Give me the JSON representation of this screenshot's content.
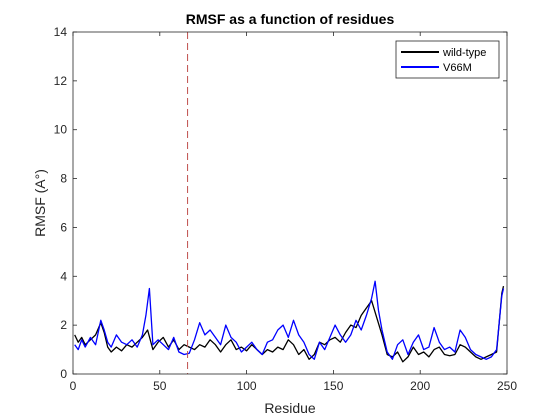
{
  "chart_data": {
    "type": "line",
    "title": "RMSF as a function of residues",
    "xlabel": "Residue",
    "ylabel": "RMSF (A°)",
    "xlim": [
      0,
      250
    ],
    "ylim": [
      0,
      14
    ],
    "xticks": [
      0,
      50,
      100,
      150,
      200,
      250
    ],
    "yticks": [
      0,
      2,
      4,
      6,
      8,
      10,
      12,
      14
    ],
    "grid": false,
    "legend_position": "top-right",
    "reference_line": {
      "x": 66,
      "style": "dashed",
      "color": "#c0504d"
    },
    "series": [
      {
        "name": "wild-type",
        "color": "#000000",
        "x": [
          1,
          3,
          5,
          7,
          10,
          13,
          16,
          18,
          20,
          22,
          25,
          28,
          31,
          34,
          37,
          40,
          43,
          46,
          49,
          52,
          55,
          58,
          61,
          64,
          67,
          70,
          73,
          76,
          79,
          82,
          85,
          88,
          91,
          94,
          97,
          100,
          103,
          106,
          109,
          112,
          115,
          118,
          121,
          124,
          127,
          130,
          133,
          136,
          139,
          142,
          145,
          148,
          151,
          154,
          157,
          160,
          163,
          166,
          169,
          172,
          175,
          178,
          181,
          184,
          187,
          190,
          193,
          196,
          199,
          202,
          205,
          208,
          211,
          214,
          217,
          220,
          223,
          226,
          229,
          232,
          235,
          238,
          241,
          244,
          247,
          248
        ],
        "y": [
          1.6,
          1.3,
          1.5,
          1.2,
          1.4,
          1.6,
          2.1,
          1.7,
          1.1,
          0.9,
          1.1,
          0.95,
          1.2,
          1.1,
          1.3,
          1.5,
          1.8,
          1.0,
          1.3,
          1.5,
          1.1,
          1.4,
          1.0,
          1.2,
          1.1,
          1.0,
          1.2,
          1.1,
          1.4,
          1.2,
          0.9,
          1.2,
          1.4,
          1.0,
          1.1,
          0.95,
          1.2,
          1.0,
          0.8,
          1.0,
          0.9,
          1.1,
          1.0,
          1.4,
          1.2,
          0.8,
          1.0,
          0.6,
          0.8,
          1.3,
          1.2,
          1.4,
          1.5,
          1.3,
          1.7,
          2.0,
          1.9,
          2.4,
          2.7,
          3.0,
          2.3,
          1.6,
          0.8,
          0.7,
          0.9,
          0.5,
          0.7,
          1.1,
          0.8,
          0.9,
          0.7,
          1.0,
          1.1,
          0.8,
          0.75,
          0.8,
          1.2,
          1.1,
          0.9,
          0.7,
          0.6,
          0.7,
          0.8,
          0.9,
          3.3,
          3.6
        ]
      },
      {
        "name": "V66M",
        "color": "#0000ff",
        "x": [
          1,
          3,
          5,
          7,
          10,
          13,
          16,
          18,
          20,
          22,
          25,
          28,
          31,
          34,
          37,
          40,
          42,
          44,
          46,
          49,
          52,
          55,
          58,
          61,
          64,
          67,
          70,
          73,
          76,
          79,
          82,
          85,
          88,
          91,
          94,
          97,
          100,
          103,
          106,
          109,
          112,
          115,
          118,
          121,
          124,
          127,
          130,
          133,
          136,
          139,
          142,
          145,
          148,
          151,
          154,
          157,
          160,
          163,
          166,
          169,
          172,
          174,
          176,
          178,
          181,
          184,
          187,
          190,
          193,
          196,
          199,
          202,
          205,
          208,
          211,
          214,
          217,
          220,
          223,
          226,
          229,
          232,
          235,
          238,
          241,
          244,
          247,
          248
        ],
        "y": [
          1.2,
          1.0,
          1.4,
          1.1,
          1.5,
          1.2,
          2.2,
          1.8,
          1.3,
          1.1,
          1.6,
          1.3,
          1.2,
          1.4,
          1.1,
          1.6,
          2.4,
          3.5,
          1.2,
          1.4,
          1.2,
          1.0,
          1.5,
          0.9,
          0.8,
          0.85,
          1.4,
          2.1,
          1.6,
          1.8,
          1.5,
          1.2,
          2.0,
          1.5,
          1.3,
          0.9,
          1.1,
          1.3,
          1.0,
          0.8,
          1.3,
          1.4,
          1.8,
          2.0,
          1.5,
          2.2,
          1.6,
          1.3,
          0.8,
          0.6,
          1.3,
          1.0,
          1.5,
          2.0,
          1.6,
          1.3,
          1.6,
          2.2,
          1.8,
          2.4,
          3.1,
          3.8,
          2.6,
          1.8,
          0.9,
          0.6,
          1.2,
          1.4,
          0.8,
          1.3,
          1.6,
          1.0,
          1.1,
          1.9,
          1.3,
          1.0,
          1.1,
          0.9,
          1.8,
          1.5,
          1.0,
          0.8,
          0.7,
          0.6,
          0.7,
          1.0,
          3.2,
          3.5
        ]
      }
    ]
  }
}
